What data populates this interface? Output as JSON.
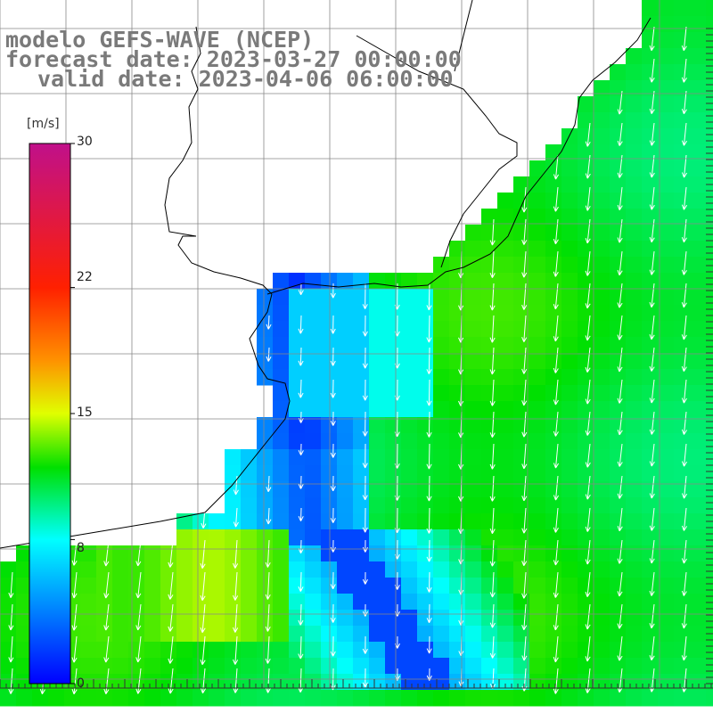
{
  "title": {
    "line1": "modelo GEFS-WAVE (NCEP)",
    "line2": "forecast date: 2023-03-27 00:00:00",
    "line3": "valid date: 2023-04-06 06:00:00"
  },
  "colorbar": {
    "unit": "[m/s]",
    "min": 0,
    "max": 30,
    "ticks": [
      {
        "value": 30,
        "label": "30"
      },
      {
        "value": 22,
        "label": "22"
      },
      {
        "value": 15,
        "label": "15"
      },
      {
        "value": 8,
        "label": "8"
      },
      {
        "value": 0,
        "label": "0"
      }
    ],
    "stops": [
      {
        "value": 0,
        "color": "#0000ff"
      },
      {
        "value": 8,
        "color": "#00ffff"
      },
      {
        "value": 12,
        "color": "#00e000"
      },
      {
        "value": 15,
        "color": "#e0ff00"
      },
      {
        "value": 18,
        "color": "#ff9000"
      },
      {
        "value": 22,
        "color": "#ff2000"
      },
      {
        "value": 30,
        "color": "#c0108a"
      }
    ]
  },
  "map": {
    "field": "wind speed",
    "land_color": "#ffffff",
    "coast_color": "#000000",
    "grid_color": "#888888"
  }
}
